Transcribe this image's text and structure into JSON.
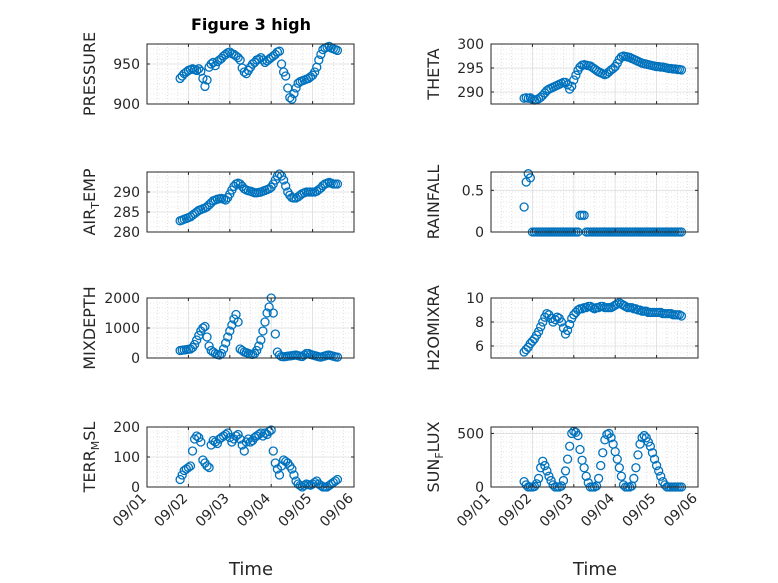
{
  "figure": {
    "title": "Figure 3 high"
  },
  "chart_data": [
    {
      "type": "scatter",
      "ylabel": "PRESSURE",
      "title": "Figure 3 high",
      "ylim": [
        900,
        975
      ],
      "yticks": [
        900,
        950
      ],
      "xlim": [
        0,
        5
      ],
      "xticks": [
        "09/01",
        "09/02",
        "09/03",
        "09/04",
        "09/05",
        "09/06"
      ],
      "x": [
        0.8,
        0.85,
        0.9,
        0.95,
        1.0,
        1.05,
        1.1,
        1.15,
        1.2,
        1.25,
        1.3,
        1.35,
        1.4,
        1.45,
        1.5,
        1.55,
        1.6,
        1.65,
        1.7,
        1.75,
        1.8,
        1.85,
        1.9,
        1.95,
        2.0,
        2.05,
        2.1,
        2.15,
        2.2,
        2.25,
        2.3,
        2.35,
        2.4,
        2.45,
        2.5,
        2.55,
        2.6,
        2.65,
        2.7,
        2.75,
        2.8,
        2.85,
        2.9,
        2.95,
        3.0,
        3.05,
        3.1,
        3.15,
        3.2,
        3.25,
        3.3,
        3.35,
        3.4,
        3.45,
        3.5,
        3.55,
        3.6,
        3.65,
        3.7,
        3.75,
        3.8,
        3.85,
        3.9,
        3.95,
        4.0,
        4.05,
        4.1,
        4.15,
        4.2,
        4.25,
        4.3,
        4.35,
        4.4,
        4.45,
        4.5,
        4.55,
        4.6
      ],
      "y": [
        932,
        935,
        938,
        940,
        942,
        943,
        944,
        943,
        942,
        944,
        941,
        932,
        922,
        930,
        946,
        950,
        952,
        948,
        953,
        955,
        957,
        960,
        962,
        964,
        965,
        963,
        962,
        960,
        958,
        955,
        945,
        940,
        938,
        942,
        946,
        950,
        952,
        955,
        956,
        958,
        955,
        952,
        954,
        956,
        958,
        960,
        962,
        965,
        966,
        950,
        940,
        935,
        920,
        908,
        906,
        913,
        920,
        926,
        928,
        929,
        930,
        931,
        932,
        934,
        936,
        940,
        946,
        955,
        962,
        968,
        970,
        971,
        972,
        970,
        969,
        968,
        967
      ]
    },
    {
      "type": "scatter",
      "ylabel": "THETA",
      "ylim": [
        287.5,
        300
      ],
      "yticks": [
        290,
        295,
        300
      ],
      "xlim": [
        0,
        5
      ],
      "xticks": [
        "09/01",
        "09/02",
        "09/03",
        "09/04",
        "09/05",
        "09/06"
      ],
      "x": [
        0.8,
        0.85,
        0.9,
        0.95,
        1.0,
        1.05,
        1.1,
        1.15,
        1.2,
        1.25,
        1.3,
        1.35,
        1.4,
        1.45,
        1.5,
        1.55,
        1.6,
        1.65,
        1.7,
        1.75,
        1.8,
        1.85,
        1.9,
        1.95,
        2.0,
        2.05,
        2.1,
        2.15,
        2.2,
        2.25,
        2.3,
        2.35,
        2.4,
        2.45,
        2.5,
        2.55,
        2.6,
        2.65,
        2.7,
        2.75,
        2.8,
        2.85,
        2.9,
        2.95,
        3.0,
        3.05,
        3.1,
        3.15,
        3.2,
        3.25,
        3.3,
        3.35,
        3.4,
        3.45,
        3.5,
        3.55,
        3.6,
        3.65,
        3.7,
        3.75,
        3.8,
        3.85,
        3.9,
        3.95,
        4.0,
        4.05,
        4.1,
        4.15,
        4.2,
        4.25,
        4.3,
        4.35,
        4.4,
        4.45,
        4.5,
        4.55,
        4.6
      ],
      "y": [
        288.7,
        288.8,
        288.7,
        288.8,
        288.5,
        288.3,
        288.4,
        288.6,
        288.9,
        289.3,
        289.8,
        290.3,
        290.6,
        290.8,
        291.0,
        291.2,
        291.4,
        291.6,
        291.8,
        292.0,
        292.0,
        291.5,
        290.6,
        291.2,
        292.5,
        293.5,
        294.5,
        295.2,
        295.6,
        295.7,
        295.6,
        295.5,
        295.4,
        295.1,
        294.8,
        294.5,
        294.2,
        294.0,
        293.8,
        293.6,
        293.8,
        294.2,
        294.6,
        294.9,
        295.3,
        296.0,
        296.8,
        297.3,
        297.5,
        297.4,
        297.3,
        297.2,
        297.0,
        296.8,
        296.6,
        296.4,
        296.2,
        296.0,
        295.9,
        295.8,
        295.7,
        295.6,
        295.5,
        295.4,
        295.3,
        295.3,
        295.2,
        295.2,
        295.1,
        295.0,
        294.9,
        294.9,
        294.8,
        294.8,
        294.7,
        294.7,
        294.6
      ]
    },
    {
      "type": "scatter",
      "ylabel": "AIR_TEMP",
      "ylabel_parts": [
        "AIR",
        "T",
        "EMP"
      ],
      "ylim": [
        280,
        295
      ],
      "yticks": [
        280,
        285,
        290
      ],
      "xlim": [
        0,
        5
      ],
      "xticks": [
        "09/01",
        "09/02",
        "09/03",
        "09/04",
        "09/05",
        "09/06"
      ],
      "x": [
        0.8,
        0.85,
        0.9,
        0.95,
        1.0,
        1.05,
        1.1,
        1.15,
        1.2,
        1.25,
        1.3,
        1.35,
        1.4,
        1.45,
        1.5,
        1.55,
        1.6,
        1.65,
        1.7,
        1.75,
        1.8,
        1.85,
        1.9,
        1.95,
        2.0,
        2.05,
        2.1,
        2.15,
        2.2,
        2.25,
        2.3,
        2.35,
        2.4,
        2.45,
        2.5,
        2.55,
        2.6,
        2.65,
        2.7,
        2.75,
        2.8,
        2.85,
        2.9,
        2.95,
        3.0,
        3.05,
        3.1,
        3.15,
        3.2,
        3.25,
        3.3,
        3.35,
        3.4,
        3.45,
        3.5,
        3.55,
        3.6,
        3.65,
        3.7,
        3.75,
        3.8,
        3.85,
        3.9,
        3.95,
        4.0,
        4.05,
        4.1,
        4.15,
        4.2,
        4.25,
        4.3,
        4.35,
        4.4,
        4.45,
        4.5,
        4.55,
        4.6
      ],
      "y": [
        282.8,
        283.0,
        283.2,
        283.4,
        283.6,
        283.8,
        284.2,
        284.6,
        285.0,
        285.4,
        285.6,
        285.8,
        286.0,
        286.3,
        286.8,
        287.3,
        287.8,
        288.0,
        288.2,
        288.3,
        288.4,
        288.2,
        288.0,
        288.6,
        289.5,
        290.5,
        291.4,
        292.0,
        292.2,
        292.0,
        291.4,
        290.8,
        290.5,
        290.3,
        290.2,
        290.0,
        289.8,
        289.8,
        289.9,
        290.0,
        290.2,
        290.4,
        290.6,
        290.8,
        291.2,
        292.0,
        293.0,
        294.0,
        294.5,
        294.0,
        293.0,
        291.5,
        290.0,
        289.2,
        288.6,
        288.5,
        288.5,
        288.8,
        289.2,
        289.6,
        289.8,
        290.0,
        290.0,
        290.0,
        290.0,
        290.0,
        290.2,
        290.6,
        291.0,
        291.6,
        292.0,
        292.2,
        292.4,
        292.2,
        292.0,
        292.0,
        292.0
      ]
    },
    {
      "type": "scatter",
      "ylabel": "RAINFALL",
      "ylim": [
        0,
        0.72
      ],
      "yticks": [
        0,
        0.5
      ],
      "xlim": [
        0,
        5
      ],
      "xticks": [
        "09/01",
        "09/02",
        "09/03",
        "09/04",
        "09/05",
        "09/06"
      ],
      "x": [
        0.8,
        0.85,
        0.9,
        0.95,
        1.0,
        1.05,
        1.1,
        1.15,
        1.2,
        1.25,
        1.3,
        1.35,
        1.4,
        1.45,
        1.5,
        1.55,
        1.6,
        1.65,
        1.7,
        1.75,
        1.8,
        1.85,
        1.9,
        1.95,
        2.0,
        2.05,
        2.1,
        2.15,
        2.2,
        2.25,
        2.3,
        2.35,
        2.4,
        2.45,
        2.5,
        2.55,
        2.6,
        2.65,
        2.7,
        2.75,
        2.8,
        2.85,
        2.9,
        2.95,
        3.0,
        3.05,
        3.1,
        3.15,
        3.2,
        3.25,
        3.3,
        3.35,
        3.4,
        3.45,
        3.5,
        3.55,
        3.6,
        3.65,
        3.7,
        3.75,
        3.8,
        3.85,
        3.9,
        3.95,
        4.0,
        4.05,
        4.1,
        4.15,
        4.2,
        4.25,
        4.3,
        4.35,
        4.4,
        4.45,
        4.5,
        4.55,
        4.6
      ],
      "y": [
        0.3,
        0.6,
        0.7,
        0.65,
        0,
        0,
        0,
        0,
        0,
        0,
        0,
        0,
        0,
        0,
        0,
        0,
        0,
        0,
        0,
        0,
        0,
        0,
        0,
        0,
        0,
        0,
        0,
        0.2,
        0.2,
        0.2,
        0,
        0,
        0,
        0,
        0,
        0,
        0,
        0,
        0,
        0,
        0,
        0,
        0,
        0,
        0,
        0,
        0,
        0,
        0,
        0,
        0,
        0,
        0,
        0,
        0,
        0,
        0,
        0,
        0,
        0,
        0,
        0,
        0,
        0,
        0,
        0,
        0,
        0,
        0,
        0,
        0,
        0,
        0,
        0,
        0,
        0,
        0
      ]
    },
    {
      "type": "scatter",
      "ylabel": "MIXDEPTH",
      "ylim": [
        0,
        2000
      ],
      "yticks": [
        0,
        1000,
        2000
      ],
      "xlim": [
        0,
        5
      ],
      "xticks": [
        "09/01",
        "09/02",
        "09/03",
        "09/04",
        "09/05",
        "09/06"
      ],
      "x": [
        0.8,
        0.85,
        0.9,
        0.95,
        1.0,
        1.05,
        1.1,
        1.15,
        1.2,
        1.25,
        1.3,
        1.35,
        1.4,
        1.45,
        1.5,
        1.55,
        1.6,
        1.65,
        1.7,
        1.75,
        1.8,
        1.85,
        1.9,
        1.95,
        2.0,
        2.05,
        2.1,
        2.15,
        2.2,
        2.25,
        2.3,
        2.35,
        2.4,
        2.45,
        2.5,
        2.55,
        2.6,
        2.65,
        2.7,
        2.75,
        2.8,
        2.85,
        2.9,
        2.95,
        3.0,
        3.05,
        3.1,
        3.15,
        3.2,
        3.25,
        3.3,
        3.35,
        3.4,
        3.45,
        3.5,
        3.55,
        3.6,
        3.65,
        3.7,
        3.75,
        3.8,
        3.85,
        3.9,
        3.95,
        4.0,
        4.05,
        4.1,
        4.15,
        4.2,
        4.25,
        4.3,
        4.35,
        4.4,
        4.45,
        4.5,
        4.55,
        4.6
      ],
      "y": [
        250,
        260,
        270,
        280,
        290,
        300,
        350,
        450,
        600,
        750,
        900,
        1000,
        1050,
        700,
        400,
        250,
        200,
        150,
        120,
        100,
        150,
        300,
        500,
        700,
        900,
        1100,
        1300,
        1450,
        1200,
        300,
        250,
        200,
        180,
        150,
        130,
        120,
        150,
        250,
        400,
        600,
        900,
        1200,
        1500,
        1700,
        2000,
        1500,
        800,
        200,
        100,
        50,
        40,
        50,
        60,
        70,
        80,
        90,
        100,
        80,
        60,
        50,
        100,
        150,
        150,
        120,
        100,
        80,
        60,
        40,
        30,
        50,
        70,
        90,
        100,
        80,
        60,
        40,
        30
      ]
    },
    {
      "type": "scatter",
      "ylabel": "H2OMIXRA",
      "ylim": [
        5,
        10
      ],
      "yticks": [
        6,
        8,
        10
      ],
      "xlim": [
        0,
        5
      ],
      "xticks": [
        "09/01",
        "09/02",
        "09/03",
        "09/04",
        "09/05",
        "09/06"
      ],
      "x": [
        0.8,
        0.85,
        0.9,
        0.95,
        1.0,
        1.05,
        1.1,
        1.15,
        1.2,
        1.25,
        1.3,
        1.35,
        1.4,
        1.45,
        1.5,
        1.55,
        1.6,
        1.65,
        1.7,
        1.75,
        1.8,
        1.85,
        1.9,
        1.95,
        2.0,
        2.05,
        2.1,
        2.15,
        2.2,
        2.25,
        2.3,
        2.35,
        2.4,
        2.45,
        2.5,
        2.55,
        2.6,
        2.65,
        2.7,
        2.75,
        2.8,
        2.85,
        2.9,
        2.95,
        3.0,
        3.05,
        3.1,
        3.15,
        3.2,
        3.25,
        3.3,
        3.35,
        3.4,
        3.45,
        3.5,
        3.55,
        3.6,
        3.65,
        3.7,
        3.75,
        3.8,
        3.85,
        3.9,
        3.95,
        4.0,
        4.05,
        4.1,
        4.15,
        4.2,
        4.25,
        4.3,
        4.35,
        4.4,
        4.45,
        4.5,
        4.55,
        4.6
      ],
      "y": [
        5.5,
        5.7,
        5.9,
        6.2,
        6.4,
        6.6,
        6.9,
        7.2,
        7.6,
        8.0,
        8.4,
        8.7,
        8.6,
        8.3,
        8.0,
        8.2,
        8.4,
        8.3,
        8.0,
        7.5,
        7.0,
        7.3,
        7.8,
        8.3,
        8.6,
        8.8,
        9.0,
        9.1,
        9.1,
        9.2,
        9.2,
        9.3,
        9.3,
        9.2,
        9.1,
        9.2,
        9.2,
        9.3,
        9.3,
        9.2,
        9.2,
        9.2,
        9.2,
        9.3,
        9.4,
        9.5,
        9.6,
        9.5,
        9.4,
        9.3,
        9.2,
        9.2,
        9.2,
        9.1,
        9.1,
        9.0,
        9.0,
        8.9,
        8.9,
        8.9,
        8.8,
        8.8,
        8.8,
        8.8,
        8.8,
        8.8,
        8.8,
        8.7,
        8.7,
        8.7,
        8.7,
        8.7,
        8.6,
        8.6,
        8.6,
        8.6,
        8.5
      ]
    },
    {
      "type": "scatter",
      "ylabel": "TERR_MSL",
      "ylabel_parts": [
        "TERR",
        "M",
        "SL"
      ],
      "ylim": [
        0,
        200
      ],
      "yticks": [
        0,
        100,
        200
      ],
      "xlim": [
        0,
        5
      ],
      "xticks": [
        "09/01",
        "09/02",
        "09/03",
        "09/04",
        "09/05",
        "09/06"
      ],
      "xlabel": "Time",
      "x": [
        0.8,
        0.85,
        0.9,
        0.95,
        1.0,
        1.05,
        1.1,
        1.15,
        1.2,
        1.25,
        1.3,
        1.35,
        1.4,
        1.45,
        1.5,
        1.55,
        1.6,
        1.65,
        1.7,
        1.75,
        1.8,
        1.85,
        1.9,
        1.95,
        2.0,
        2.05,
        2.1,
        2.15,
        2.2,
        2.25,
        2.3,
        2.35,
        2.4,
        2.45,
        2.5,
        2.55,
        2.6,
        2.65,
        2.7,
        2.75,
        2.8,
        2.85,
        2.9,
        2.95,
        3.0,
        3.05,
        3.1,
        3.15,
        3.2,
        3.25,
        3.3,
        3.35,
        3.4,
        3.45,
        3.5,
        3.55,
        3.6,
        3.65,
        3.7,
        3.75,
        3.8,
        3.85,
        3.9,
        3.95,
        4.0,
        4.05,
        4.1,
        4.15,
        4.2,
        4.25,
        4.3,
        4.35,
        4.4,
        4.45,
        4.5,
        4.55,
        4.6
      ],
      "y": [
        25,
        40,
        55,
        60,
        65,
        70,
        120,
        160,
        170,
        165,
        150,
        90,
        80,
        70,
        65,
        140,
        155,
        150,
        145,
        160,
        165,
        170,
        175,
        180,
        165,
        150,
        160,
        170,
        175,
        160,
        140,
        120,
        150,
        160,
        150,
        155,
        165,
        170,
        175,
        180,
        170,
        180,
        175,
        185,
        190,
        120,
        80,
        60,
        40,
        70,
        90,
        85,
        80,
        70,
        60,
        40,
        20,
        10,
        5,
        0,
        5,
        10,
        8,
        6,
        10,
        15,
        20,
        10,
        5,
        0,
        0,
        0,
        5,
        10,
        15,
        20,
        25
      ]
    },
    {
      "type": "scatter",
      "ylabel": "SUN_FLUX",
      "ylabel_parts": [
        "SUN",
        "F",
        "LUX"
      ],
      "ylim": [
        0,
        560
      ],
      "yticks": [
        0,
        500
      ],
      "xlim": [
        0,
        5
      ],
      "xticks": [
        "09/01",
        "09/02",
        "09/03",
        "09/04",
        "09/05",
        "09/06"
      ],
      "xlabel": "Time",
      "x": [
        0.8,
        0.85,
        0.9,
        0.95,
        1.0,
        1.05,
        1.1,
        1.15,
        1.2,
        1.25,
        1.3,
        1.35,
        1.4,
        1.45,
        1.5,
        1.55,
        1.6,
        1.65,
        1.7,
        1.75,
        1.8,
        1.85,
        1.9,
        1.95,
        2.0,
        2.05,
        2.1,
        2.15,
        2.2,
        2.25,
        2.3,
        2.35,
        2.4,
        2.45,
        2.5,
        2.55,
        2.6,
        2.65,
        2.7,
        2.75,
        2.8,
        2.85,
        2.9,
        2.95,
        3.0,
        3.05,
        3.1,
        3.15,
        3.2,
        3.25,
        3.3,
        3.35,
        3.4,
        3.45,
        3.5,
        3.55,
        3.6,
        3.65,
        3.7,
        3.75,
        3.8,
        3.85,
        3.9,
        3.95,
        4.0,
        4.05,
        4.1,
        4.15,
        4.2,
        4.25,
        4.3,
        4.35,
        4.4,
        4.45,
        4.5,
        4.55,
        4.6
      ],
      "y": [
        50,
        20,
        0,
        0,
        0,
        5,
        30,
        80,
        180,
        240,
        200,
        150,
        100,
        60,
        20,
        0,
        0,
        0,
        10,
        60,
        150,
        260,
        380,
        500,
        520,
        510,
        480,
        350,
        250,
        180,
        100,
        40,
        0,
        0,
        0,
        10,
        80,
        200,
        320,
        440,
        490,
        500,
        460,
        400,
        330,
        260,
        180,
        100,
        20,
        0,
        0,
        0,
        10,
        80,
        180,
        300,
        400,
        460,
        480,
        460,
        420,
        380,
        320,
        260,
        200,
        150,
        100,
        50,
        20,
        0,
        0,
        0,
        0,
        0,
        0,
        0,
        0
      ]
    }
  ]
}
